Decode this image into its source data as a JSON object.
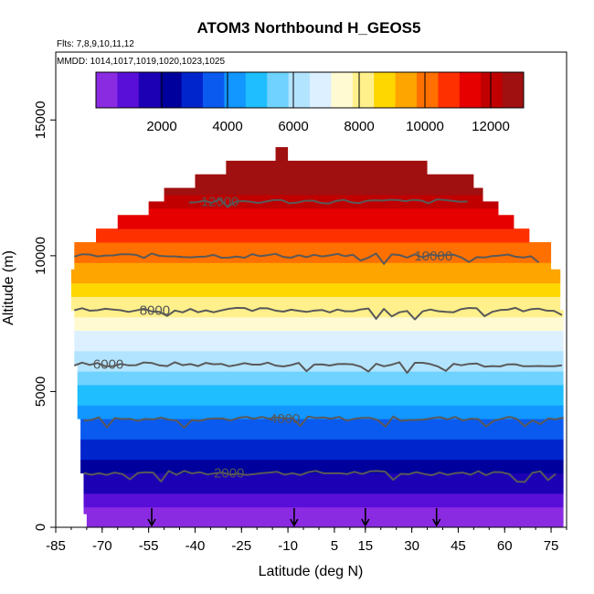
{
  "chart_data": {
    "type": "heatmap",
    "title": "ATOM3 Northbound H_GEOS5",
    "notes": [
      "Flts: 7,8,9,10,11,12",
      "MMDD: 1014,1017,1019,1020,1023,1025"
    ],
    "xlabel": "Latitude (deg N)",
    "ylabel": "Altitude (m)",
    "xlim": [
      -85,
      80
    ],
    "ylim": [
      0,
      17500
    ],
    "x_ticks": [
      "-85",
      "-70",
      "-55",
      "-40",
      "-25",
      "-10",
      "5",
      "15",
      "30",
      "45",
      "60",
      "75"
    ],
    "y_ticks": [
      "0",
      "5000",
      "10000",
      "15000"
    ],
    "colorbar": {
      "range": [
        0,
        13000
      ],
      "ticks": [
        "2000",
        "4000",
        "6000",
        "8000",
        "10000",
        "12000"
      ],
      "colors": [
        "#8a2be2",
        "#5a0fd8",
        "#1c00b4",
        "#00009c",
        "#0025cc",
        "#0a5af0",
        "#1296ff",
        "#1ebeff",
        "#6fd2ff",
        "#b3e4ff",
        "#dcf0ff",
        "#fffad2",
        "#fff08c",
        "#ffd700",
        "#ffa500",
        "#ff7000",
        "#ff3000",
        "#e60000",
        "#c00000",
        "#a01010"
      ],
      "bands": 20
    },
    "contours": [
      {
        "level": 2000,
        "label": "2000",
        "x_range": [
          -76,
          78
        ]
      },
      {
        "level": 4000,
        "label": "4000",
        "x_range": [
          -76,
          79
        ]
      },
      {
        "level": 6000,
        "label": "6000",
        "x_range": [
          -79,
          79
        ]
      },
      {
        "level": 8000,
        "label": "8000",
        "x_range": [
          -79,
          79
        ]
      },
      {
        "level": 10000,
        "label": "10000",
        "x_range": [
          -79,
          71
        ]
      },
      {
        "level": 12000,
        "label": "12000",
        "x_range": [
          -42,
          50
        ]
      }
    ],
    "flight_markers_lat": [
      -54,
      -8,
      15,
      38
    ],
    "altitude_profile": [
      {
        "alt_min": 0,
        "alt_max": 500,
        "lat_min": -75,
        "lat_max": 79
      },
      {
        "alt_min": 500,
        "alt_max": 2000,
        "lat_min": -76,
        "lat_max": 79
      },
      {
        "alt_min": 2000,
        "alt_max": 4000,
        "lat_min": -77,
        "lat_max": 79
      },
      {
        "alt_min": 4000,
        "alt_max": 6000,
        "lat_min": -78,
        "lat_max": 79
      },
      {
        "alt_min": 6000,
        "alt_max": 8000,
        "lat_min": -79,
        "lat_max": 79
      },
      {
        "alt_min": 8000,
        "alt_max": 9500,
        "lat_min": -80,
        "lat_max": 78
      },
      {
        "alt_min": 9500,
        "alt_max": 10500,
        "lat_min": -79,
        "lat_max": 75
      },
      {
        "alt_min": 10500,
        "alt_max": 11000,
        "lat_min": -72,
        "lat_max": 68
      },
      {
        "alt_min": 11000,
        "alt_max": 11500,
        "lat_min": -65,
        "lat_max": 63
      },
      {
        "alt_min": 11500,
        "alt_max": 12000,
        "lat_min": -55,
        "lat_max": 58
      },
      {
        "alt_min": 12000,
        "alt_max": 12500,
        "lat_min": -50,
        "lat_max": 53
      },
      {
        "alt_min": 12500,
        "alt_max": 13000,
        "lat_min": -40,
        "lat_max": 50
      },
      {
        "alt_min": 13000,
        "alt_max": 13500,
        "lat_min": -30,
        "lat_max": 35
      },
      {
        "alt_min": 13500,
        "alt_max": 14000,
        "lat_min": -14,
        "lat_max": -10
      }
    ]
  }
}
